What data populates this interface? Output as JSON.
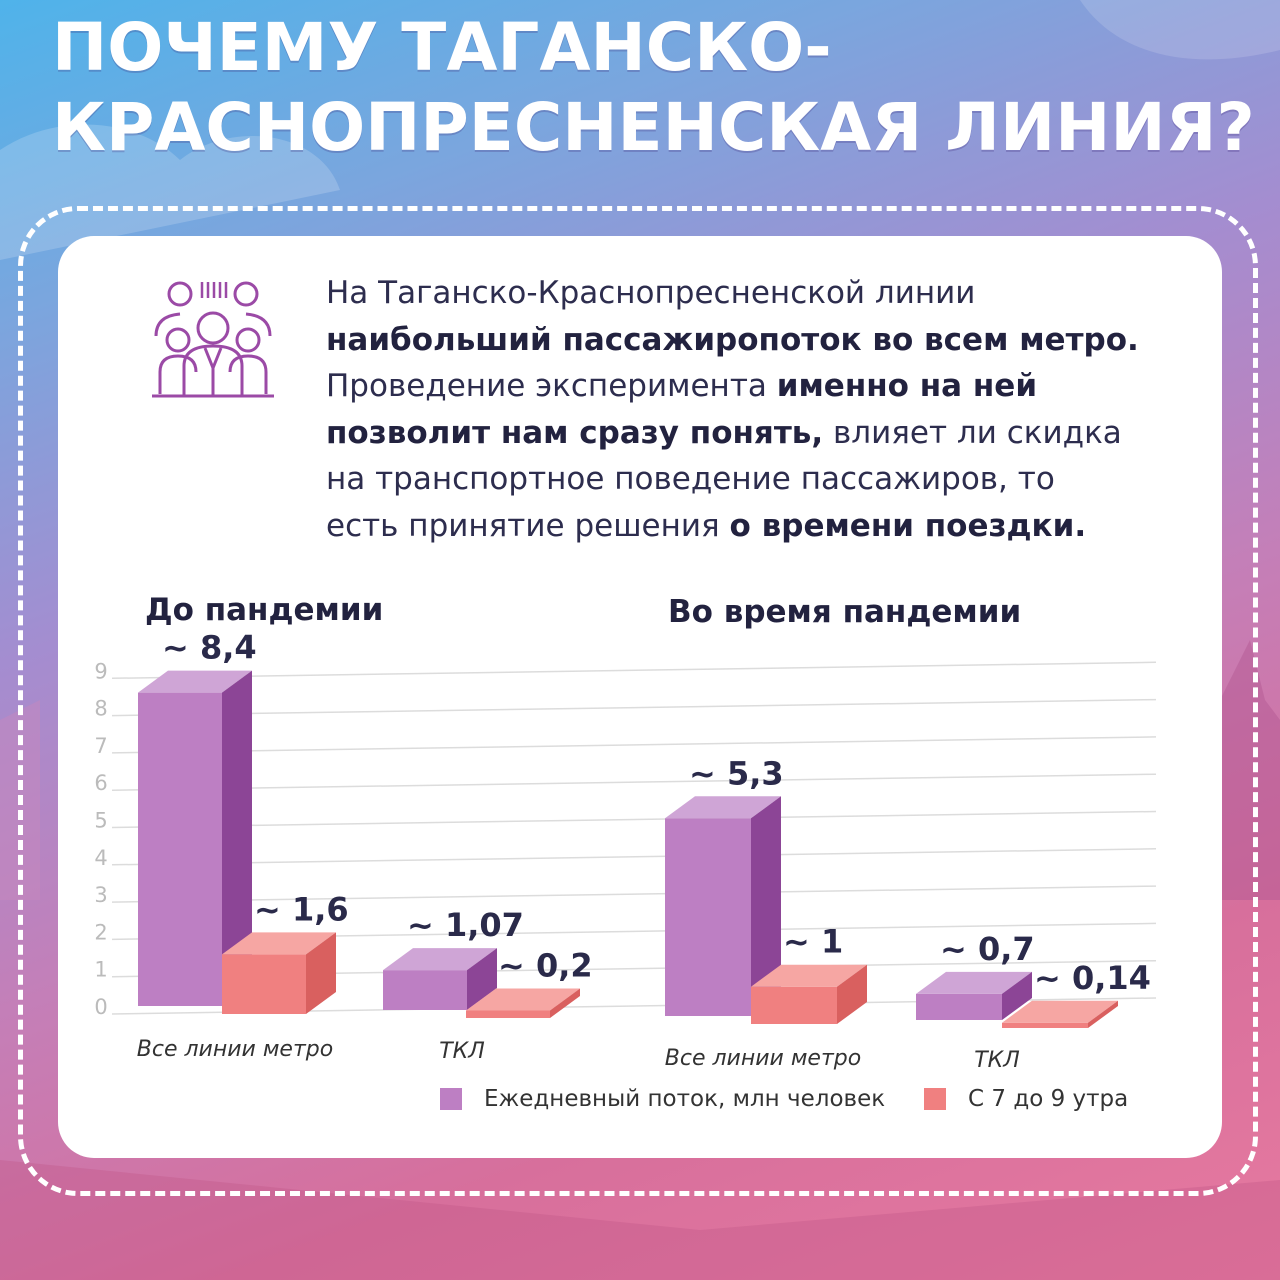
{
  "title": {
    "line1": "ПОЧЕМУ ТАГАНСКО-",
    "line2": "КРАСНОПРЕСНЕНСКАЯ ЛИНИЯ?"
  },
  "intro": {
    "p1": "На Таганско-Краснопресненской линии",
    "p2_bold": "наибольший пассажиропоток во всем метро.",
    "p3": "Проведение эксперимента ",
    "p3_bold": "именно на ней",
    "p4_bold": "позволит нам сразу понять,",
    "p4": " влияет ли скидка",
    "p5": "на транспортное поведение пассажиров, то",
    "p6": "есть принятие решения ",
    "p6_bold": "о времени поездки."
  },
  "colors": {
    "daily_front": "#bd7fc3",
    "daily_top": "#cfa5d6",
    "daily_side": "#8c4596",
    "peak_front": "#f08080",
    "peak_top": "#f6a6a3",
    "peak_side": "#d9605f",
    "value_label": "#2a2a4a",
    "grid": "#dcdcdc",
    "tick": "#bbbbbb"
  },
  "chart_data": {
    "type": "bar",
    "y_ticks": [
      "0",
      "1",
      "2",
      "3",
      "4",
      "5",
      "6",
      "7",
      "8",
      "9"
    ],
    "ylim": [
      0,
      9
    ],
    "grid": true,
    "legend": [
      {
        "label": "Ежедневный поток,  млн человек",
        "series": "daily"
      },
      {
        "label": "С 7 до 9 утра",
        "series": "peak"
      }
    ],
    "panels": [
      {
        "title": "До пандемии",
        "categories": [
          "Все линии метро",
          "ТКЛ"
        ],
        "series": [
          {
            "key": "daily",
            "values": [
              8.4,
              1.07
            ],
            "labels": [
              "~ 8,4",
              "~ 1,07"
            ]
          },
          {
            "key": "peak",
            "values": [
              1.6,
              0.2
            ],
            "labels": [
              "~ 1,6",
              "~ 0,2"
            ]
          }
        ]
      },
      {
        "title": "Во время пандемии",
        "categories": [
          "Все линии метро",
          "ТКЛ"
        ],
        "series": [
          {
            "key": "daily",
            "values": [
              5.3,
              0.7
            ],
            "labels": [
              "~ 5,3",
              "~ 0,7"
            ]
          },
          {
            "key": "peak",
            "values": [
              1,
              0.14
            ],
            "labels": [
              "~ 1",
              "~ 0,14"
            ]
          }
        ]
      }
    ]
  }
}
